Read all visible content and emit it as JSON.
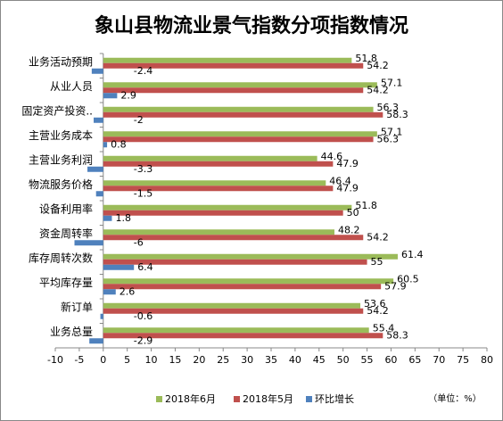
{
  "chart_data": {
    "type": "bar",
    "orientation": "horizontal",
    "title": "象山县物流业景气指数分项指数情况",
    "categories": [
      "业务活动预期",
      "从业人员",
      "固定资产投资..",
      "主营业务成本",
      "主营业务利润",
      "物流服务价格",
      "设备利用率",
      "资金周转率",
      "库存周转次数",
      "平均库存量",
      "新订单",
      "业务总量"
    ],
    "series": [
      {
        "name": "2018年6月",
        "color": "#9bbb59",
        "values": [
          51.8,
          57.1,
          56.3,
          57.1,
          44.6,
          46.4,
          51.8,
          48.2,
          61.4,
          60.5,
          53.6,
          55.4
        ]
      },
      {
        "name": "2018年5月",
        "color": "#c0504d",
        "values": [
          54.2,
          54.2,
          58.3,
          56.3,
          47.9,
          47.9,
          50,
          54.2,
          55,
          57.9,
          54.2,
          58.3
        ]
      },
      {
        "name": "环比增长",
        "color": "#4f81bd",
        "values": [
          -2.4,
          2.9,
          -2,
          0.8,
          -3.3,
          -1.5,
          1.8,
          -6,
          6.4,
          2.6,
          -0.6,
          -2.9
        ]
      }
    ],
    "xlim": [
      -10,
      80
    ],
    "xticks": [
      -10,
      -5,
      0,
      5,
      10,
      15,
      20,
      25,
      30,
      35,
      40,
      45,
      50,
      55,
      60,
      65,
      70,
      75,
      80
    ],
    "unit_note": "（单位：%）",
    "legend": "bottom"
  }
}
